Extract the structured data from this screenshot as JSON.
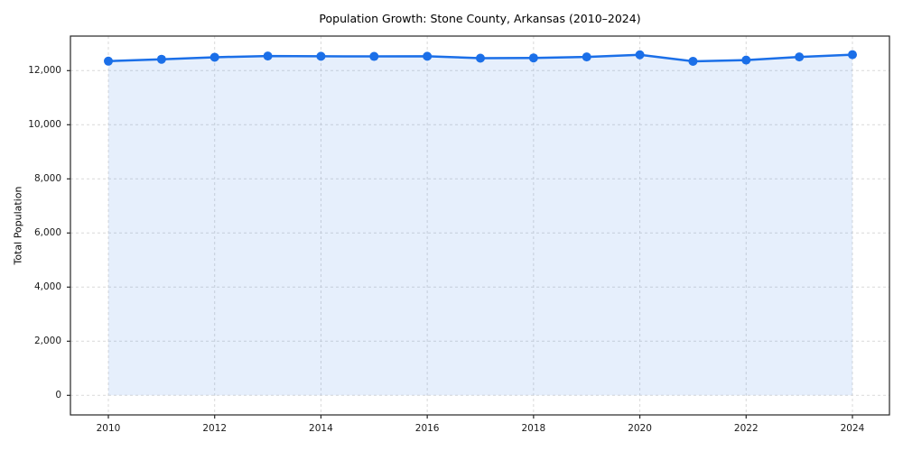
{
  "title": "Population Growth: Stone County, Arkansas (2010–2024)",
  "chart_data": {
    "type": "line",
    "title": "Population Growth: Stone County, Arkansas (2010–2024)",
    "xlabel": "",
    "ylabel": "Total Population",
    "x": [
      2010,
      2011,
      2012,
      2013,
      2014,
      2015,
      2016,
      2017,
      2018,
      2019,
      2020,
      2021,
      2022,
      2023,
      2024
    ],
    "series": [
      {
        "name": "Total Population",
        "values": [
          12350,
          12420,
          12495,
          12540,
          12530,
          12525,
          12530,
          12460,
          12470,
          12505,
          12585,
          12345,
          12390,
          12505,
          12590
        ]
      }
    ],
    "xticks": [
      2010,
      2012,
      2014,
      2016,
      2018,
      2020,
      2022,
      2024
    ],
    "yticks": [
      0,
      2000,
      4000,
      6000,
      8000,
      10000,
      12000
    ],
    "ylim": [
      -720,
      13280
    ],
    "xlim": [
      2009.3,
      2024.7
    ],
    "grid": true,
    "grid_style": "dashed",
    "legend": false,
    "colors": {
      "line": "#1b6fe8",
      "marker": "#1b6fe8",
      "fill": "#1b6fe8",
      "fill_opacity": 0.11,
      "grid": "#d9d9d9",
      "spine": "#262626",
      "tick_text": "#1a1a1a",
      "background": "#ffffff"
    },
    "marker": "circle",
    "marker_radius": 5,
    "line_width": 2.5,
    "area_baseline": 0
  }
}
